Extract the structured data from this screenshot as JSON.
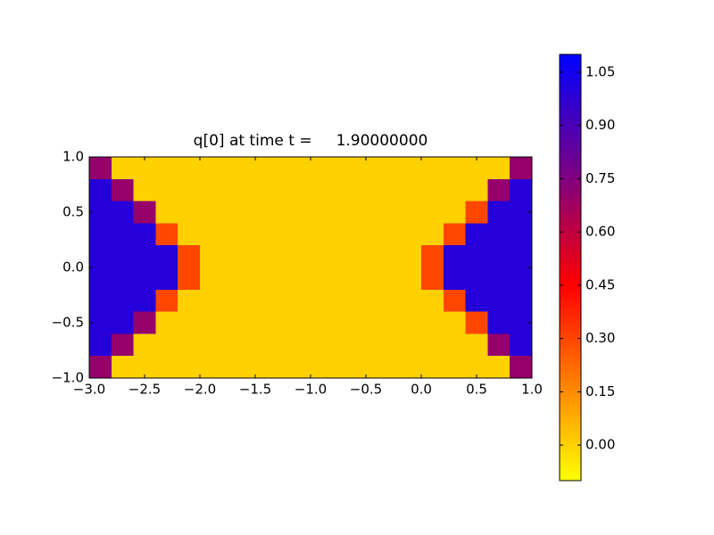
{
  "chart_data": {
    "type": "heatmap",
    "title": "q[0] at time t =     1.90000000",
    "xlim": [
      -3,
      1
    ],
    "ylim": [
      -1,
      1
    ],
    "xticks": [
      {
        "value": -3,
        "label": "−3.0"
      },
      {
        "value": -2.5,
        "label": "−2.5"
      },
      {
        "value": -2,
        "label": "−2.0"
      },
      {
        "value": -1.5,
        "label": "−1.5"
      },
      {
        "value": -1,
        "label": "−1.0"
      },
      {
        "value": -0.5,
        "label": "−0.5"
      },
      {
        "value": 0,
        "label": "0.0"
      },
      {
        "value": 0.5,
        "label": "0.5"
      },
      {
        "value": 1,
        "label": "1.0"
      }
    ],
    "yticks": [
      {
        "value": -1,
        "label": "−1.0"
      },
      {
        "value": -0.5,
        "label": "−0.5"
      },
      {
        "value": 0,
        "label": "0.0"
      },
      {
        "value": 0.5,
        "label": "0.5"
      },
      {
        "value": 1,
        "label": "1.0"
      }
    ],
    "z": [
      [
        0.7,
        0,
        0,
        0,
        0,
        0,
        0,
        0,
        0,
        0,
        0,
        0,
        0,
        0,
        0,
        0,
        0,
        0,
        0,
        0.7
      ],
      [
        1,
        0.7,
        0,
        0,
        0,
        0,
        0,
        0,
        0,
        0,
        0,
        0,
        0,
        0,
        0,
        0,
        0,
        0,
        0.7,
        1
      ],
      [
        1,
        1,
        0.7,
        0,
        0,
        0,
        0,
        0,
        0,
        0,
        0,
        0,
        0,
        0,
        0,
        0,
        0,
        0.3,
        1,
        1
      ],
      [
        1,
        1,
        1,
        0.3,
        0,
        0,
        0,
        0,
        0,
        0,
        0,
        0,
        0,
        0,
        0,
        0,
        0.3,
        1,
        1,
        1
      ],
      [
        1,
        1,
        1,
        1,
        0.3,
        0,
        0,
        0,
        0,
        0,
        0,
        0,
        0,
        0,
        0,
        0.3,
        1,
        1,
        1,
        1
      ],
      [
        1,
        1,
        1,
        1,
        0.3,
        0,
        0,
        0,
        0,
        0,
        0,
        0,
        0,
        0,
        0,
        0.3,
        1,
        1,
        1,
        1
      ],
      [
        1,
        1,
        1,
        0.3,
        0,
        0,
        0,
        0,
        0,
        0,
        0,
        0,
        0,
        0,
        0,
        0,
        0.3,
        1,
        1,
        1
      ],
      [
        1,
        1,
        0.7,
        0,
        0,
        0,
        0,
        0,
        0,
        0,
        0,
        0,
        0,
        0,
        0,
        0,
        0,
        0.3,
        1,
        1
      ],
      [
        1,
        0.7,
        0,
        0,
        0,
        0,
        0,
        0,
        0,
        0,
        0,
        0,
        0,
        0,
        0,
        0,
        0,
        0,
        0.7,
        1
      ],
      [
        0.7,
        0,
        0,
        0,
        0,
        0,
        0,
        0,
        0,
        0,
        0,
        0,
        0,
        0,
        0,
        0,
        0,
        0,
        0,
        0.7
      ]
    ],
    "clim": [
      -0.1,
      1.1
    ],
    "cticks": [
      {
        "value": 0,
        "label": "0.00"
      },
      {
        "value": 0.15,
        "label": "0.15"
      },
      {
        "value": 0.3,
        "label": "0.30"
      },
      {
        "value": 0.45,
        "label": "0.45"
      },
      {
        "value": 0.6,
        "label": "0.60"
      },
      {
        "value": 0.75,
        "label": "0.75"
      },
      {
        "value": 0.9,
        "label": "0.90"
      },
      {
        "value": 1.05,
        "label": "1.05"
      }
    ],
    "colormap": [
      {
        "value": -0.1,
        "color": "#ffff00"
      },
      {
        "value": 0.45,
        "color": "#ff0000"
      },
      {
        "value": 0.75,
        "color": "#800080"
      },
      {
        "value": 1.1,
        "color": "#0000ff"
      }
    ]
  }
}
